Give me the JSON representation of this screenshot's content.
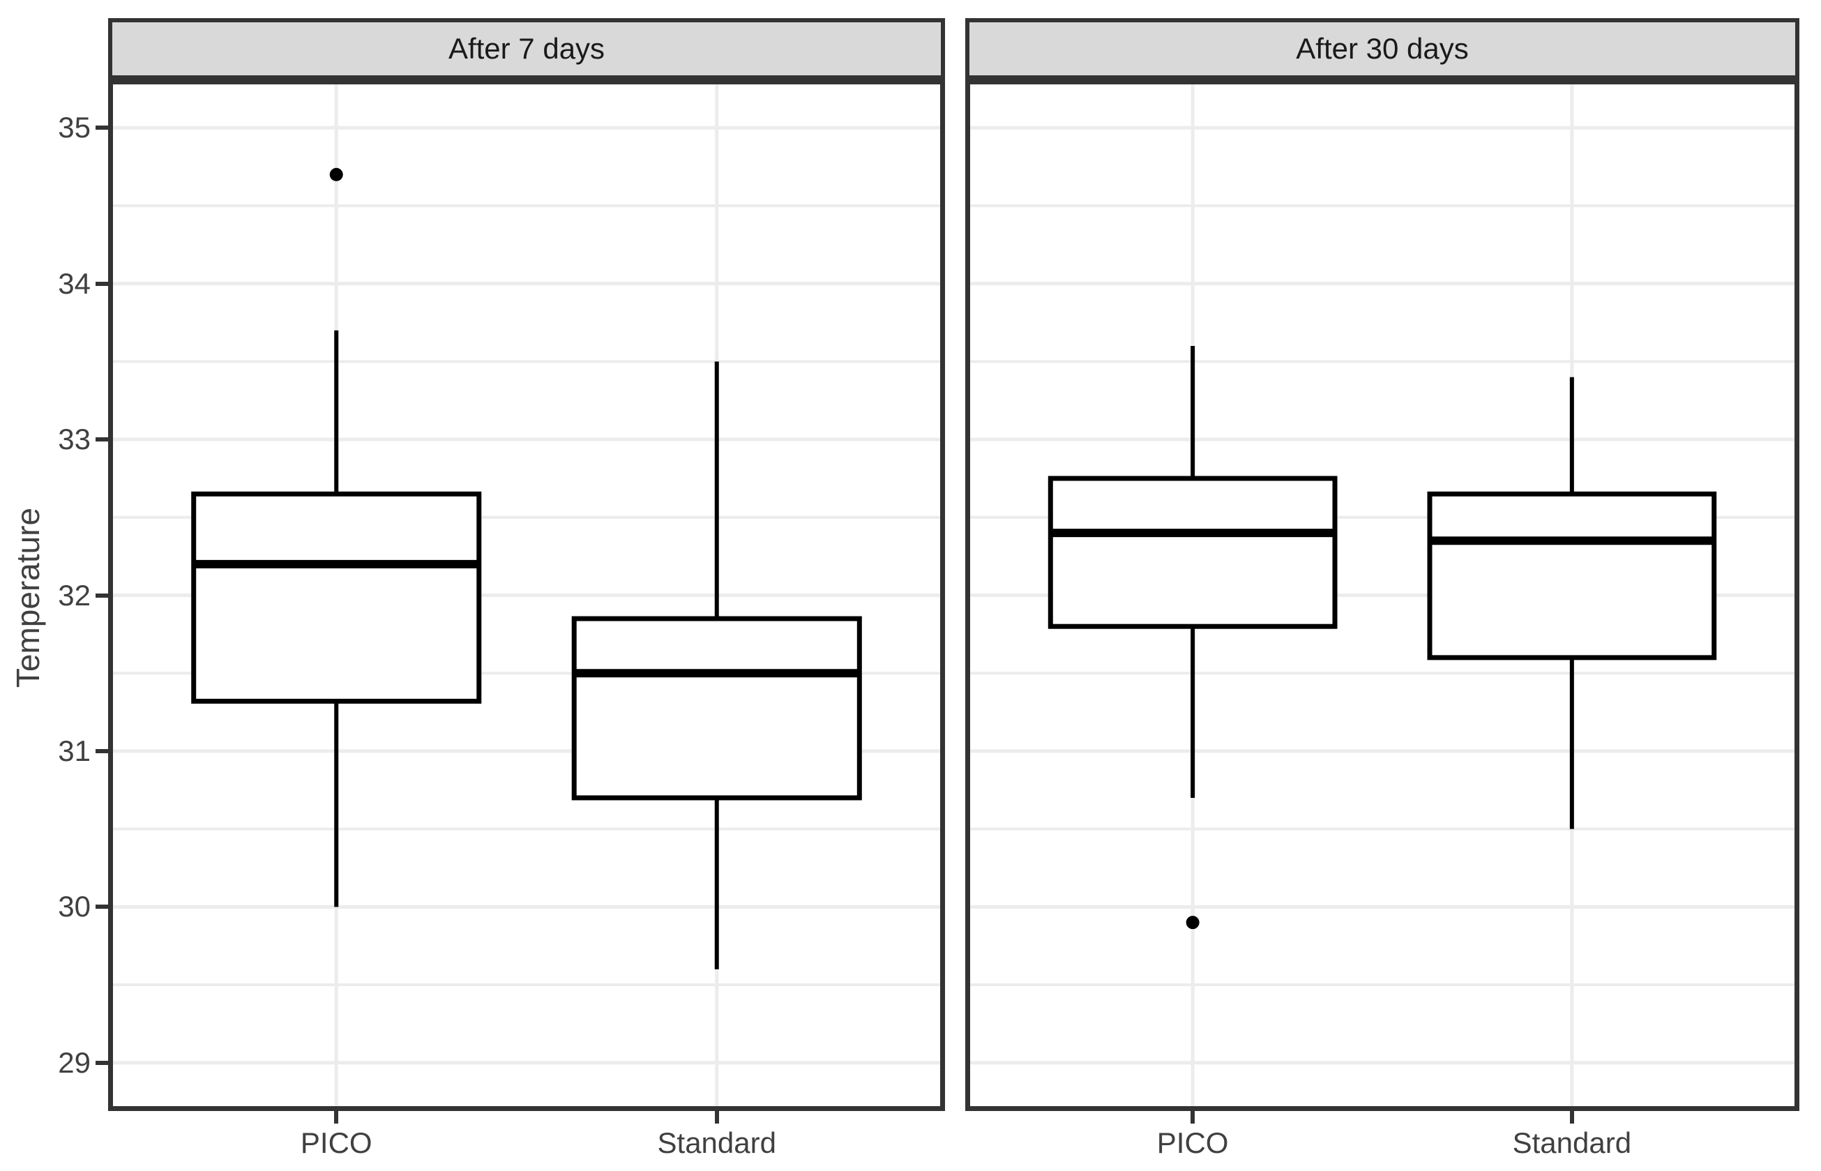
{
  "chart_data": {
    "type": "boxplot",
    "title": "",
    "ylabel": "Temperature",
    "xlabel": "",
    "categories": [
      "PICO",
      "Standard"
    ],
    "y_axis": {
      "ticks": [
        35,
        34,
        33,
        32,
        31,
        30,
        29
      ],
      "minor_ticks": [
        34.5,
        33.5,
        32.5,
        31.5,
        30.5,
        29.5
      ],
      "range_top": 35.31,
      "range_bottom": 28.69,
      "grid": "on",
      "legend": "none"
    },
    "facets": [
      {
        "label": "After 7 days",
        "boxes": [
          {
            "category": "PICO",
            "whisker_low": 30.0,
            "q1": 31.32,
            "median": 32.2,
            "q3": 32.65,
            "whisker_high": 33.7,
            "outliers": [
              34.7
            ]
          },
          {
            "category": "Standard",
            "whisker_low": 29.6,
            "q1": 30.7,
            "median": 31.5,
            "q3": 31.85,
            "whisker_high": 33.5,
            "outliers": []
          }
        ]
      },
      {
        "label": "After 30 days",
        "boxes": [
          {
            "category": "PICO",
            "whisker_low": 30.7,
            "q1": 31.8,
            "median": 32.4,
            "q3": 32.75,
            "whisker_high": 33.6,
            "outliers": [
              29.9
            ]
          },
          {
            "category": "Standard",
            "whisker_low": 30.5,
            "q1": 31.6,
            "median": 32.35,
            "q3": 32.65,
            "whisker_high": 33.4,
            "outliers": []
          }
        ]
      }
    ],
    "style": {
      "strip_background": "#D9D9D9",
      "panel_border": "#333333",
      "gridline": "#ECECEC",
      "box_stroke": "#000000",
      "box_fill": "#FFFFFF",
      "axis_text": "#404040",
      "strip_text": "#1A1A1A"
    }
  }
}
